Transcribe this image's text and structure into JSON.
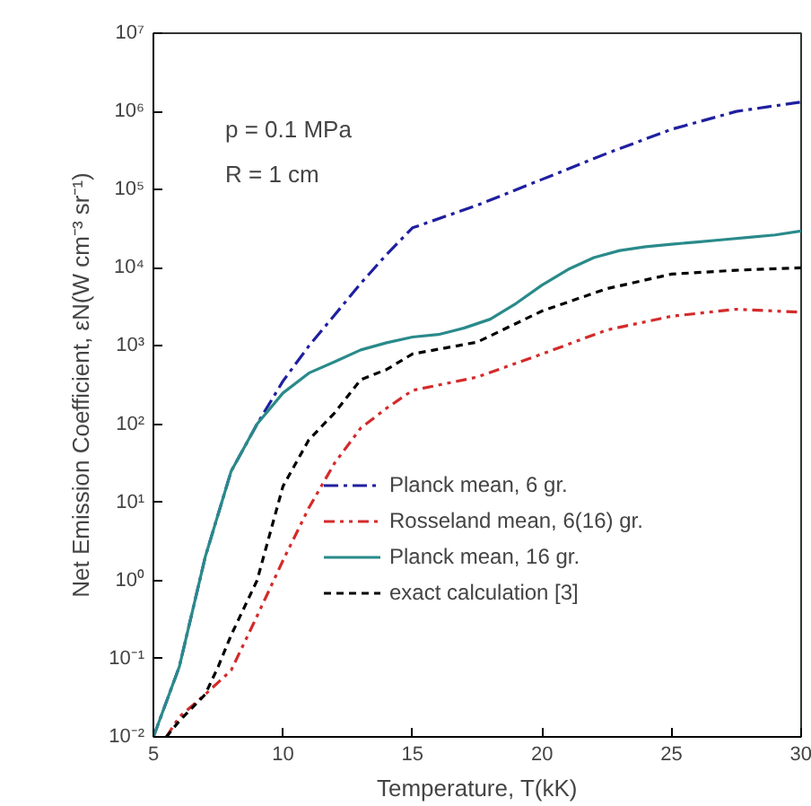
{
  "chart_data": {
    "type": "line",
    "xlabel": "Temperature, T(kK)",
    "ylabel": "Net Emission Coefficient, εN(W cm⁻³ sr⁻¹)",
    "annotations": [
      "p = 0.1 MPa",
      "R = 1 cm"
    ],
    "xlim": [
      5,
      30
    ],
    "xticks": [
      5,
      10,
      15,
      20,
      25,
      30
    ],
    "ylim": [
      0.01,
      10000000
    ],
    "yticks": [
      {
        "value": 0.01,
        "label": "10⁻²"
      },
      {
        "value": 0.1,
        "label": "10⁻¹"
      },
      {
        "value": 1,
        "label": "10⁰"
      },
      {
        "value": 10,
        "label": "10¹"
      },
      {
        "value": 100,
        "label": "10²"
      },
      {
        "value": 1000,
        "label": "10³"
      },
      {
        "value": 10000,
        "label": "10⁴"
      },
      {
        "value": 100000,
        "label": "10⁵"
      },
      {
        "value": 1000000,
        "label": "10⁶"
      },
      {
        "value": 10000000,
        "label": "10⁷"
      }
    ],
    "log": "y",
    "grid": false,
    "legend": "right",
    "series": [
      {
        "name": "Planck mean, 6 gr.",
        "color": "#1f1fa0",
        "line_style": "dashdot",
        "x": [
          5,
          6,
          7,
          8,
          9,
          10,
          11,
          12,
          13,
          14,
          15,
          17.5,
          20,
          22.5,
          25,
          27.5,
          30
        ],
        "values": [
          0.01,
          0.079,
          2,
          25,
          100,
          355,
          1000,
          2500,
          6300,
          14800,
          32400,
          63000,
          135000,
          290000,
          590000,
          1000000,
          1320000
        ]
      },
      {
        "name": "Rosseland mean, 6(16) gr.",
        "color": "#d42a2a",
        "line_style": "dashdotdot",
        "x": [
          5.5,
          6,
          7,
          8,
          9,
          10,
          11,
          12,
          13,
          14,
          15,
          17.5,
          20,
          22.5,
          25,
          27.5,
          30
        ],
        "values": [
          0.01,
          0.018,
          0.035,
          0.071,
          0.35,
          1.8,
          8.5,
          32,
          89,
          160,
          270,
          400,
          790,
          1600,
          2400,
          2950,
          2700
        ]
      },
      {
        "name": "Planck mean, 16 gr.",
        "color": "#2a8a8a",
        "line_style": "solid",
        "x": [
          5,
          6,
          7,
          8,
          9,
          10,
          11,
          12,
          13,
          14,
          15,
          16,
          17,
          18,
          19,
          20,
          21,
          22,
          23,
          24,
          25,
          26,
          27,
          28,
          29,
          30
        ],
        "values": [
          0.01,
          0.079,
          2,
          25,
          100,
          250,
          450,
          630,
          890,
          1100,
          1300,
          1400,
          1700,
          2200,
          3500,
          6000,
          9500,
          13500,
          16600,
          18600,
          20000,
          21400,
          22900,
          24500,
          26300,
          29500
        ]
      },
      {
        "name": "exact calculation [3]",
        "color": "#000000",
        "line_style": "dashed",
        "x": [
          5.5,
          6,
          7,
          7.5,
          8,
          9,
          10,
          11,
          12,
          13,
          14,
          15,
          17.5,
          20,
          22.5,
          25,
          27.5,
          30
        ],
        "values": [
          0.01,
          0.016,
          0.035,
          0.079,
          0.2,
          1,
          16,
          63,
          140,
          370,
          500,
          790,
          1120,
          2800,
          5400,
          8300,
          9300,
          10000
        ]
      }
    ]
  }
}
